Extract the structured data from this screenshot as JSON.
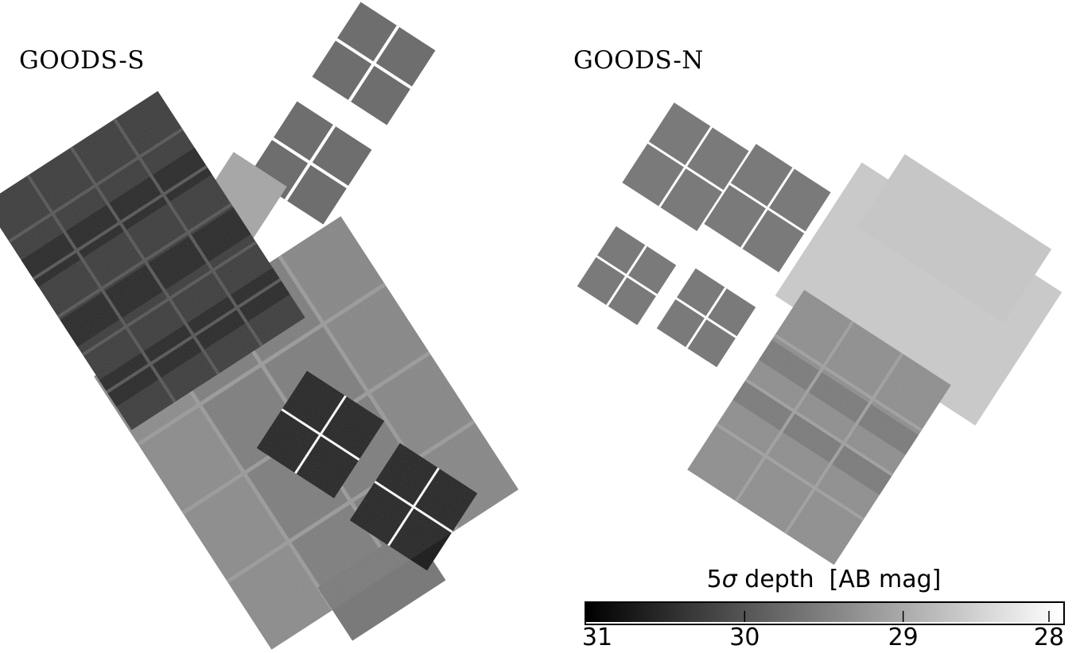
{
  "panels": [
    {
      "label": "GOODS-S"
    },
    {
      "label": "GOODS-N"
    }
  ],
  "colorbar": {
    "title_prefix": "5",
    "title_symbol": "σ",
    "title_suffix": " depth  [AB mag]",
    "ticks": [
      "31",
      "30",
      "29",
      "28"
    ],
    "range": [
      31.0,
      28.0
    ],
    "tick_values": [
      31,
      30,
      29,
      28
    ],
    "color_dark": "#000000",
    "color_light": "#ffffff"
  },
  "colors": {
    "deep": "#262626",
    "medium": "#6e6e6e",
    "shallow": "#a7a7a7",
    "very_shallow": "#c9c9c9"
  }
}
